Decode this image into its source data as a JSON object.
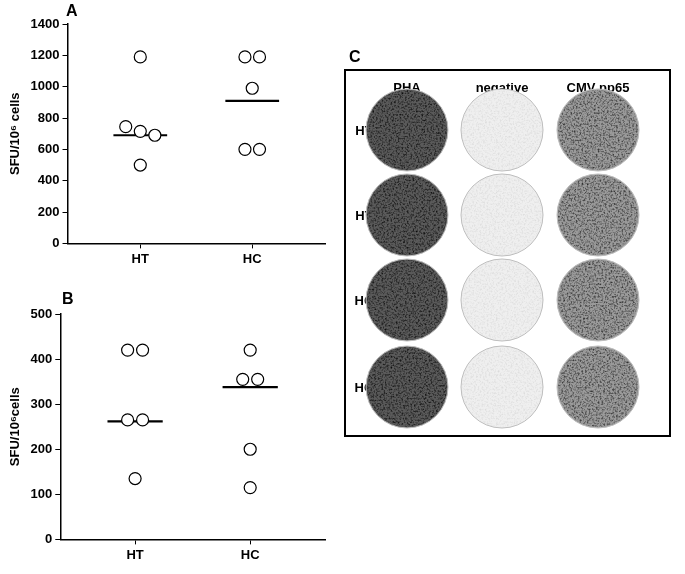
{
  "chart_data": [
    {
      "panel": "A",
      "type": "scatter",
      "categories": [
        "HT",
        "HC"
      ],
      "values": [
        [
          1190,
          745,
          715,
          690,
          500
        ],
        [
          1190,
          1190,
          990,
          600,
          600
        ]
      ],
      "center_lines": [
        690,
        910
      ],
      "y_label": "SFU/10⁶ cells",
      "ylim": [
        0,
        1400
      ],
      "yticks": [
        0,
        200,
        400,
        600,
        800,
        1000,
        1200,
        1400
      ],
      "grid": false,
      "marker": "circle_open",
      "color": "#000000"
    },
    {
      "panel": "B",
      "type": "scatter",
      "categories": [
        "HT",
        "HC"
      ],
      "values": [
        [
          420,
          420,
          265,
          265,
          135
        ],
        [
          420,
          355,
          355,
          200,
          115
        ]
      ],
      "center_lines": [
        262,
        338
      ],
      "y_label": "SFU/10⁶cells",
      "ylim": [
        0,
        500
      ],
      "yticks": [
        0,
        100,
        200,
        300,
        400,
        500
      ],
      "grid": false,
      "marker": "circle_open",
      "color": "#000000"
    }
  ],
  "panel_c": {
    "label": "C",
    "columns": [
      "PHA",
      "negative",
      "CMV pp65"
    ],
    "rows": [
      "HT",
      "HT",
      "HC",
      "HC"
    ]
  }
}
